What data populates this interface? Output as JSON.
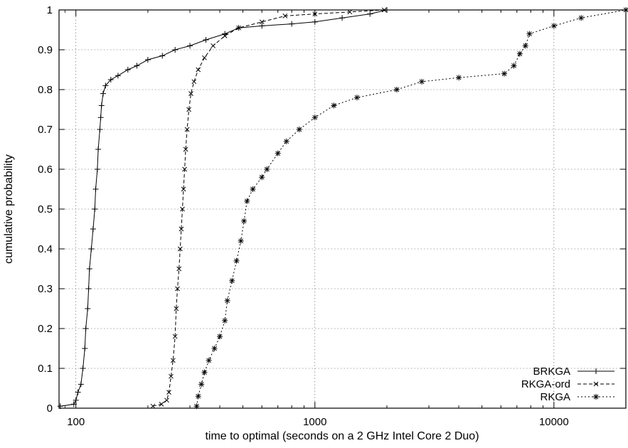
{
  "chart_data": {
    "type": "line",
    "xscale": "log",
    "xlim": [
      85,
      20000
    ],
    "ylim": [
      0,
      1
    ],
    "xlabel": "time to optimal (seconds on a 2 GHz Intel Core 2 Duo)",
    "ylabel": "cumulative probability",
    "grid": true,
    "legend_position": "bottom-right",
    "x_ticks": [
      {
        "value": 100,
        "label": "100"
      },
      {
        "value": 1000,
        "label": "1000"
      },
      {
        "value": 10000,
        "label": "10000"
      }
    ],
    "y_ticks": [
      {
        "value": 0,
        "label": "0"
      },
      {
        "value": 0.1,
        "label": "0.1"
      },
      {
        "value": 0.2,
        "label": "0.2"
      },
      {
        "value": 0.3,
        "label": "0.3"
      },
      {
        "value": 0.4,
        "label": "0.4"
      },
      {
        "value": 0.5,
        "label": "0.5"
      },
      {
        "value": 0.6,
        "label": "0.6"
      },
      {
        "value": 0.7,
        "label": "0.7"
      },
      {
        "value": 0.8,
        "label": "0.8"
      },
      {
        "value": 0.9,
        "label": "0.9"
      },
      {
        "value": 1,
        "label": "1"
      }
    ],
    "series": [
      {
        "name": "BRKGA",
        "line_style": "solid",
        "marker": "plus",
        "points": [
          [
            86,
            0.005
          ],
          [
            98,
            0.01
          ],
          [
            100,
            0.02
          ],
          [
            102,
            0.04
          ],
          [
            105,
            0.06
          ],
          [
            107,
            0.1
          ],
          [
            109,
            0.15
          ],
          [
            110,
            0.2
          ],
          [
            112,
            0.25
          ],
          [
            113,
            0.3
          ],
          [
            114,
            0.35
          ],
          [
            116,
            0.4
          ],
          [
            118,
            0.45
          ],
          [
            120,
            0.5
          ],
          [
            121,
            0.55
          ],
          [
            123,
            0.6
          ],
          [
            124,
            0.65
          ],
          [
            126,
            0.7
          ],
          [
            127,
            0.73
          ],
          [
            128,
            0.76
          ],
          [
            130,
            0.79
          ],
          [
            133,
            0.81
          ],
          [
            140,
            0.825
          ],
          [
            150,
            0.835
          ],
          [
            165,
            0.85
          ],
          [
            180,
            0.86
          ],
          [
            200,
            0.875
          ],
          [
            230,
            0.885
          ],
          [
            260,
            0.9
          ],
          [
            300,
            0.91
          ],
          [
            350,
            0.925
          ],
          [
            420,
            0.94
          ],
          [
            480,
            0.955
          ],
          [
            600,
            0.96
          ],
          [
            800,
            0.965
          ],
          [
            1000,
            0.97
          ],
          [
            1300,
            0.98
          ],
          [
            1700,
            0.99
          ],
          [
            2000,
            1.0
          ]
        ]
      },
      {
        "name": "RKGA-ord",
        "line_style": "dashed",
        "marker": "x",
        "points": [
          [
            210,
            0.005
          ],
          [
            228,
            0.01
          ],
          [
            240,
            0.02
          ],
          [
            245,
            0.04
          ],
          [
            250,
            0.08
          ],
          [
            255,
            0.12
          ],
          [
            260,
            0.18
          ],
          [
            263,
            0.25
          ],
          [
            266,
            0.3
          ],
          [
            270,
            0.35
          ],
          [
            273,
            0.4
          ],
          [
            276,
            0.45
          ],
          [
            279,
            0.5
          ],
          [
            282,
            0.55
          ],
          [
            285,
            0.6
          ],
          [
            288,
            0.65
          ],
          [
            292,
            0.7
          ],
          [
            297,
            0.75
          ],
          [
            303,
            0.79
          ],
          [
            312,
            0.82
          ],
          [
            325,
            0.85
          ],
          [
            345,
            0.88
          ],
          [
            375,
            0.91
          ],
          [
            420,
            0.935
          ],
          [
            480,
            0.955
          ],
          [
            600,
            0.97
          ],
          [
            750,
            0.985
          ],
          [
            1000,
            0.99
          ],
          [
            1400,
            0.995
          ],
          [
            1950,
            1.0
          ]
        ]
      },
      {
        "name": "RKGA",
        "line_style": "dotted",
        "marker": "star",
        "points": [
          [
            320,
            0.005
          ],
          [
            325,
            0.03
          ],
          [
            335,
            0.06
          ],
          [
            345,
            0.09
          ],
          [
            360,
            0.12
          ],
          [
            380,
            0.15
          ],
          [
            400,
            0.18
          ],
          [
            420,
            0.22
          ],
          [
            430,
            0.27
          ],
          [
            450,
            0.32
          ],
          [
            470,
            0.37
          ],
          [
            490,
            0.42
          ],
          [
            505,
            0.47
          ],
          [
            520,
            0.52
          ],
          [
            550,
            0.55
          ],
          [
            600,
            0.58
          ],
          [
            630,
            0.6
          ],
          [
            700,
            0.64
          ],
          [
            760,
            0.67
          ],
          [
            860,
            0.7
          ],
          [
            1000,
            0.73
          ],
          [
            1200,
            0.76
          ],
          [
            1500,
            0.78
          ],
          [
            2200,
            0.8
          ],
          [
            2800,
            0.82
          ],
          [
            4000,
            0.83
          ],
          [
            6200,
            0.84
          ],
          [
            6800,
            0.86
          ],
          [
            7200,
            0.89
          ],
          [
            7600,
            0.91
          ],
          [
            7900,
            0.94
          ],
          [
            10000,
            0.96
          ],
          [
            13000,
            0.98
          ],
          [
            20000,
            1.0
          ]
        ]
      }
    ]
  }
}
